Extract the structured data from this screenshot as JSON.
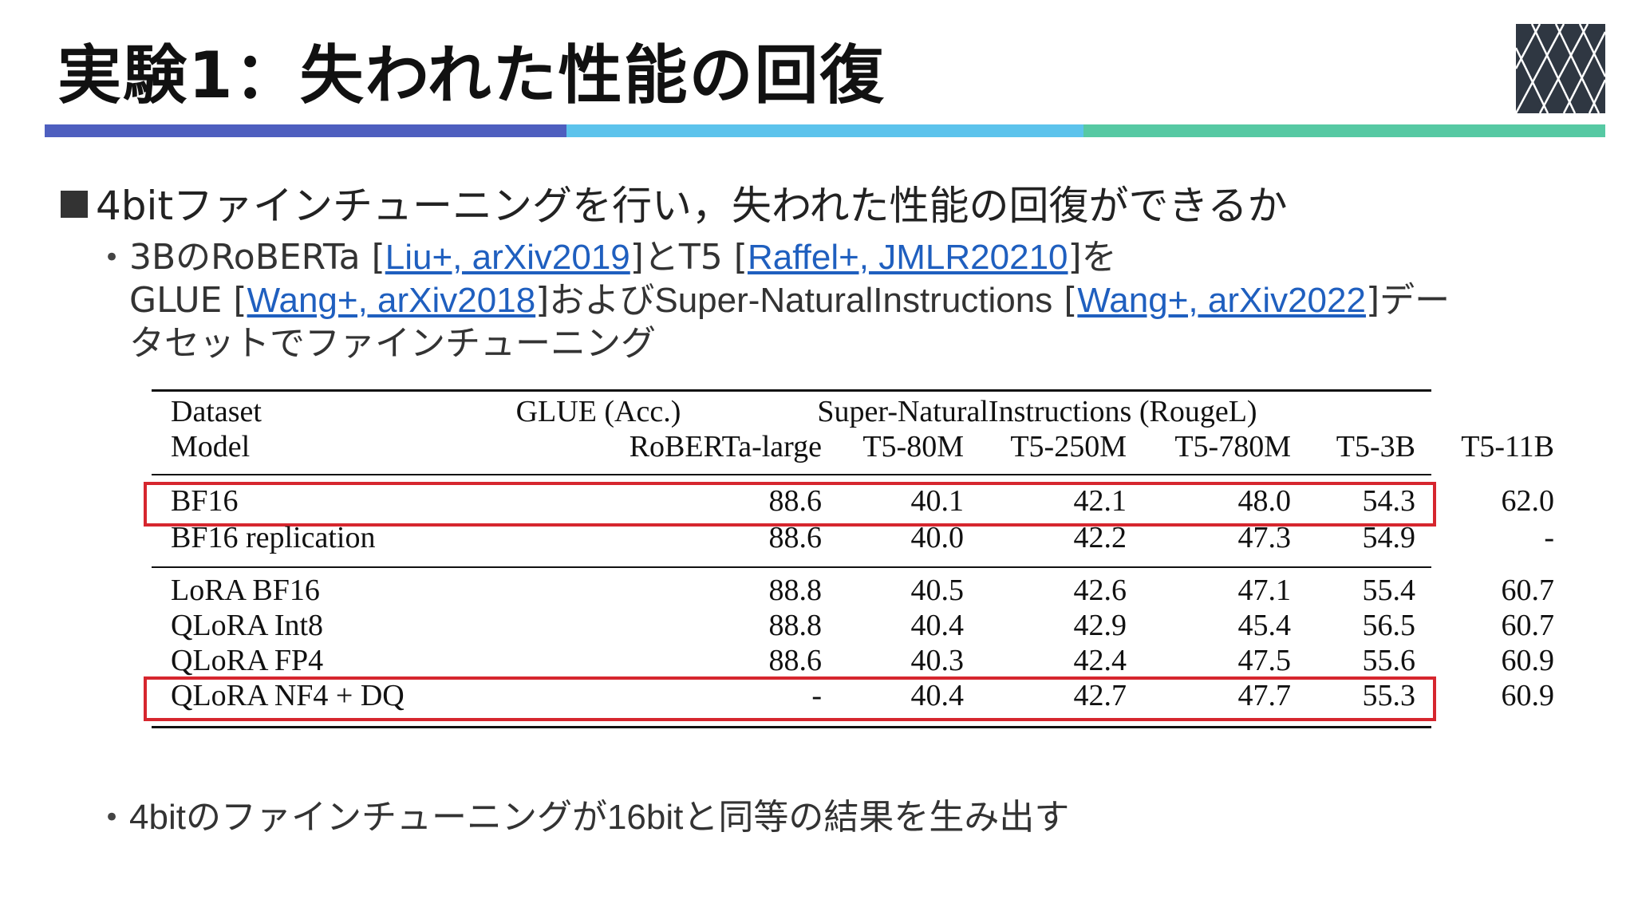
{
  "slide": {
    "title": "実験1：失われた性能の回復",
    "main_bullet": "4bitファインチューニングを行い，失われた性能の回復ができるか",
    "sub1": {
      "line1_pre": "3BのRoBERTa [",
      "ref1": "Liu+, arXiv2019",
      "line1_mid": "]とT5 [",
      "ref2": "Raffel+, JMLR20210",
      "line1_post": "]を",
      "line2_pre": "GLUE [",
      "ref3": "Wang+, arXiv2018",
      "line2_mid": "]および",
      "dataset": "Super-NaturalInstructions",
      "line2_mid2": " [",
      "ref4": "Wang+,  arXiv2022",
      "line2_post": "]デー",
      "line3": "タセットでファインチューニング"
    },
    "sub2": {
      "part1": "4bit",
      "part2": "のファインチューニングが",
      "part3": "16bit",
      "part4": "と同等の結果を生み出す"
    }
  },
  "table": {
    "header_row1": [
      "Dataset",
      "GLUE (Acc.)",
      "Super-NaturalInstructions (RougeL)"
    ],
    "header_row2": [
      "Model",
      "RoBERTa-large",
      "T5-80M",
      "T5-250M",
      "T5-780M",
      "T5-3B",
      "T5-11B"
    ],
    "rows": [
      [
        "BF16",
        "88.6",
        "40.1",
        "42.1",
        "48.0",
        "54.3",
        "62.0"
      ],
      [
        "BF16 replication",
        "88.6",
        "40.0",
        "42.2",
        "47.3",
        "54.9",
        "-"
      ],
      [
        "LoRA BF16",
        "88.8",
        "40.5",
        "42.6",
        "47.1",
        "55.4",
        "60.7"
      ],
      [
        "QLoRA Int8",
        "88.8",
        "40.4",
        "42.9",
        "45.4",
        "56.5",
        "60.7"
      ],
      [
        "QLoRA FP4",
        "88.6",
        "40.3",
        "42.4",
        "47.5",
        "55.6",
        "60.9"
      ],
      [
        "QLoRA NF4 + DQ",
        "-",
        "40.4",
        "42.7",
        "47.7",
        "55.3",
        "60.9"
      ]
    ],
    "highlighted_rows": [
      "BF16",
      "QLoRA NF4 + DQ"
    ]
  },
  "colors": {
    "bar_blue": "#4e5fbf",
    "bar_cyan": "#5cc3ec",
    "bar_green": "#56c9a3",
    "highlight_red": "#d6262e",
    "link_blue": "#1f5fbf",
    "logo_bg": "#2f3742"
  }
}
